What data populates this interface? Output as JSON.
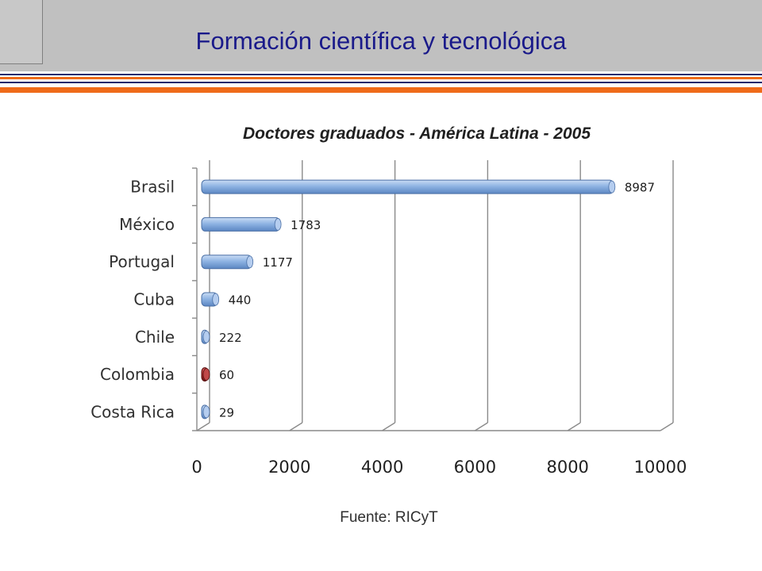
{
  "page": {
    "title": "Formación científica y tecnológica"
  },
  "colors": {
    "title_text": "#1a1a8a",
    "header_band": "#c0c0c0",
    "rule_navy": "#1c2a6e",
    "rule_orange": "#ef6b1a",
    "bar_default": "#8fb4e3",
    "bar_highlight": "#a52a2a"
  },
  "chart_data": {
    "type": "bar",
    "orientation": "horizontal",
    "title": "Doctores graduados - América Latina - 2005",
    "categories": [
      "Brasil",
      "México",
      "Portugal",
      "Cuba",
      "Chile",
      "Colombia",
      "Costa Rica"
    ],
    "values": [
      8987,
      1783,
      1177,
      440,
      222,
      60,
      29
    ],
    "data_labels": [
      "8987",
      "1783",
      "1177",
      "440",
      "222",
      "60",
      "29"
    ],
    "highlighted_category": "Colombia",
    "xlim": [
      0,
      10000
    ],
    "x_ticks": [
      "0",
      "2000",
      "4000",
      "6000",
      "8000",
      "10000"
    ],
    "grid": true,
    "source": "Fuente: RICyT"
  }
}
